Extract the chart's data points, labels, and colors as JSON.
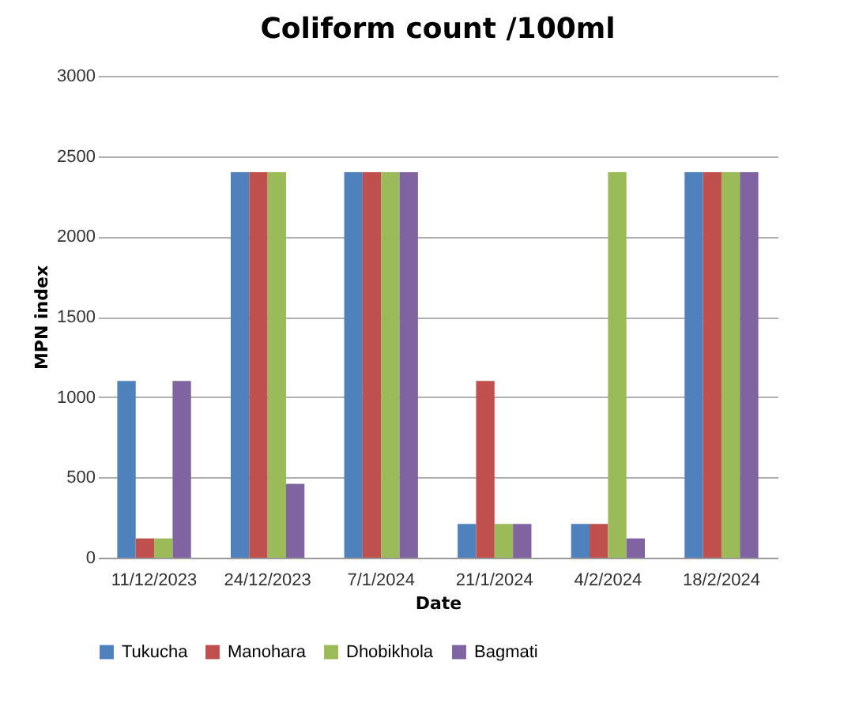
{
  "chart_data": {
    "type": "bar",
    "title": "Coliform count  /100ml",
    "xlabel": "Date",
    "ylabel": "MPN index",
    "categories": [
      "11/12/2023",
      "24/12/2023",
      "7/1/2024",
      "21/1/2024",
      "4/2/2024",
      "18/2/2024"
    ],
    "series": [
      {
        "name": "Tukucha",
        "color": "#4f81bd",
        "values": [
          1100,
          2400,
          2400,
          210,
          210,
          2400
        ]
      },
      {
        "name": "Manohara",
        "color": "#c0504d",
        "values": [
          120,
          2400,
          2400,
          1100,
          210,
          2400
        ]
      },
      {
        "name": "Dhobikhola",
        "color": "#9bbb59",
        "values": [
          120,
          2400,
          2400,
          210,
          2400,
          2400
        ]
      },
      {
        "name": "Bagmati",
        "color": "#8064a2",
        "values": [
          1100,
          460,
          2400,
          210,
          120,
          2400
        ]
      }
    ],
    "ylim": [
      0,
      3000
    ],
    "yticks": [
      0,
      500,
      1000,
      1500,
      2000,
      2500,
      3000
    ],
    "grid": "y",
    "legend": "bottom"
  }
}
